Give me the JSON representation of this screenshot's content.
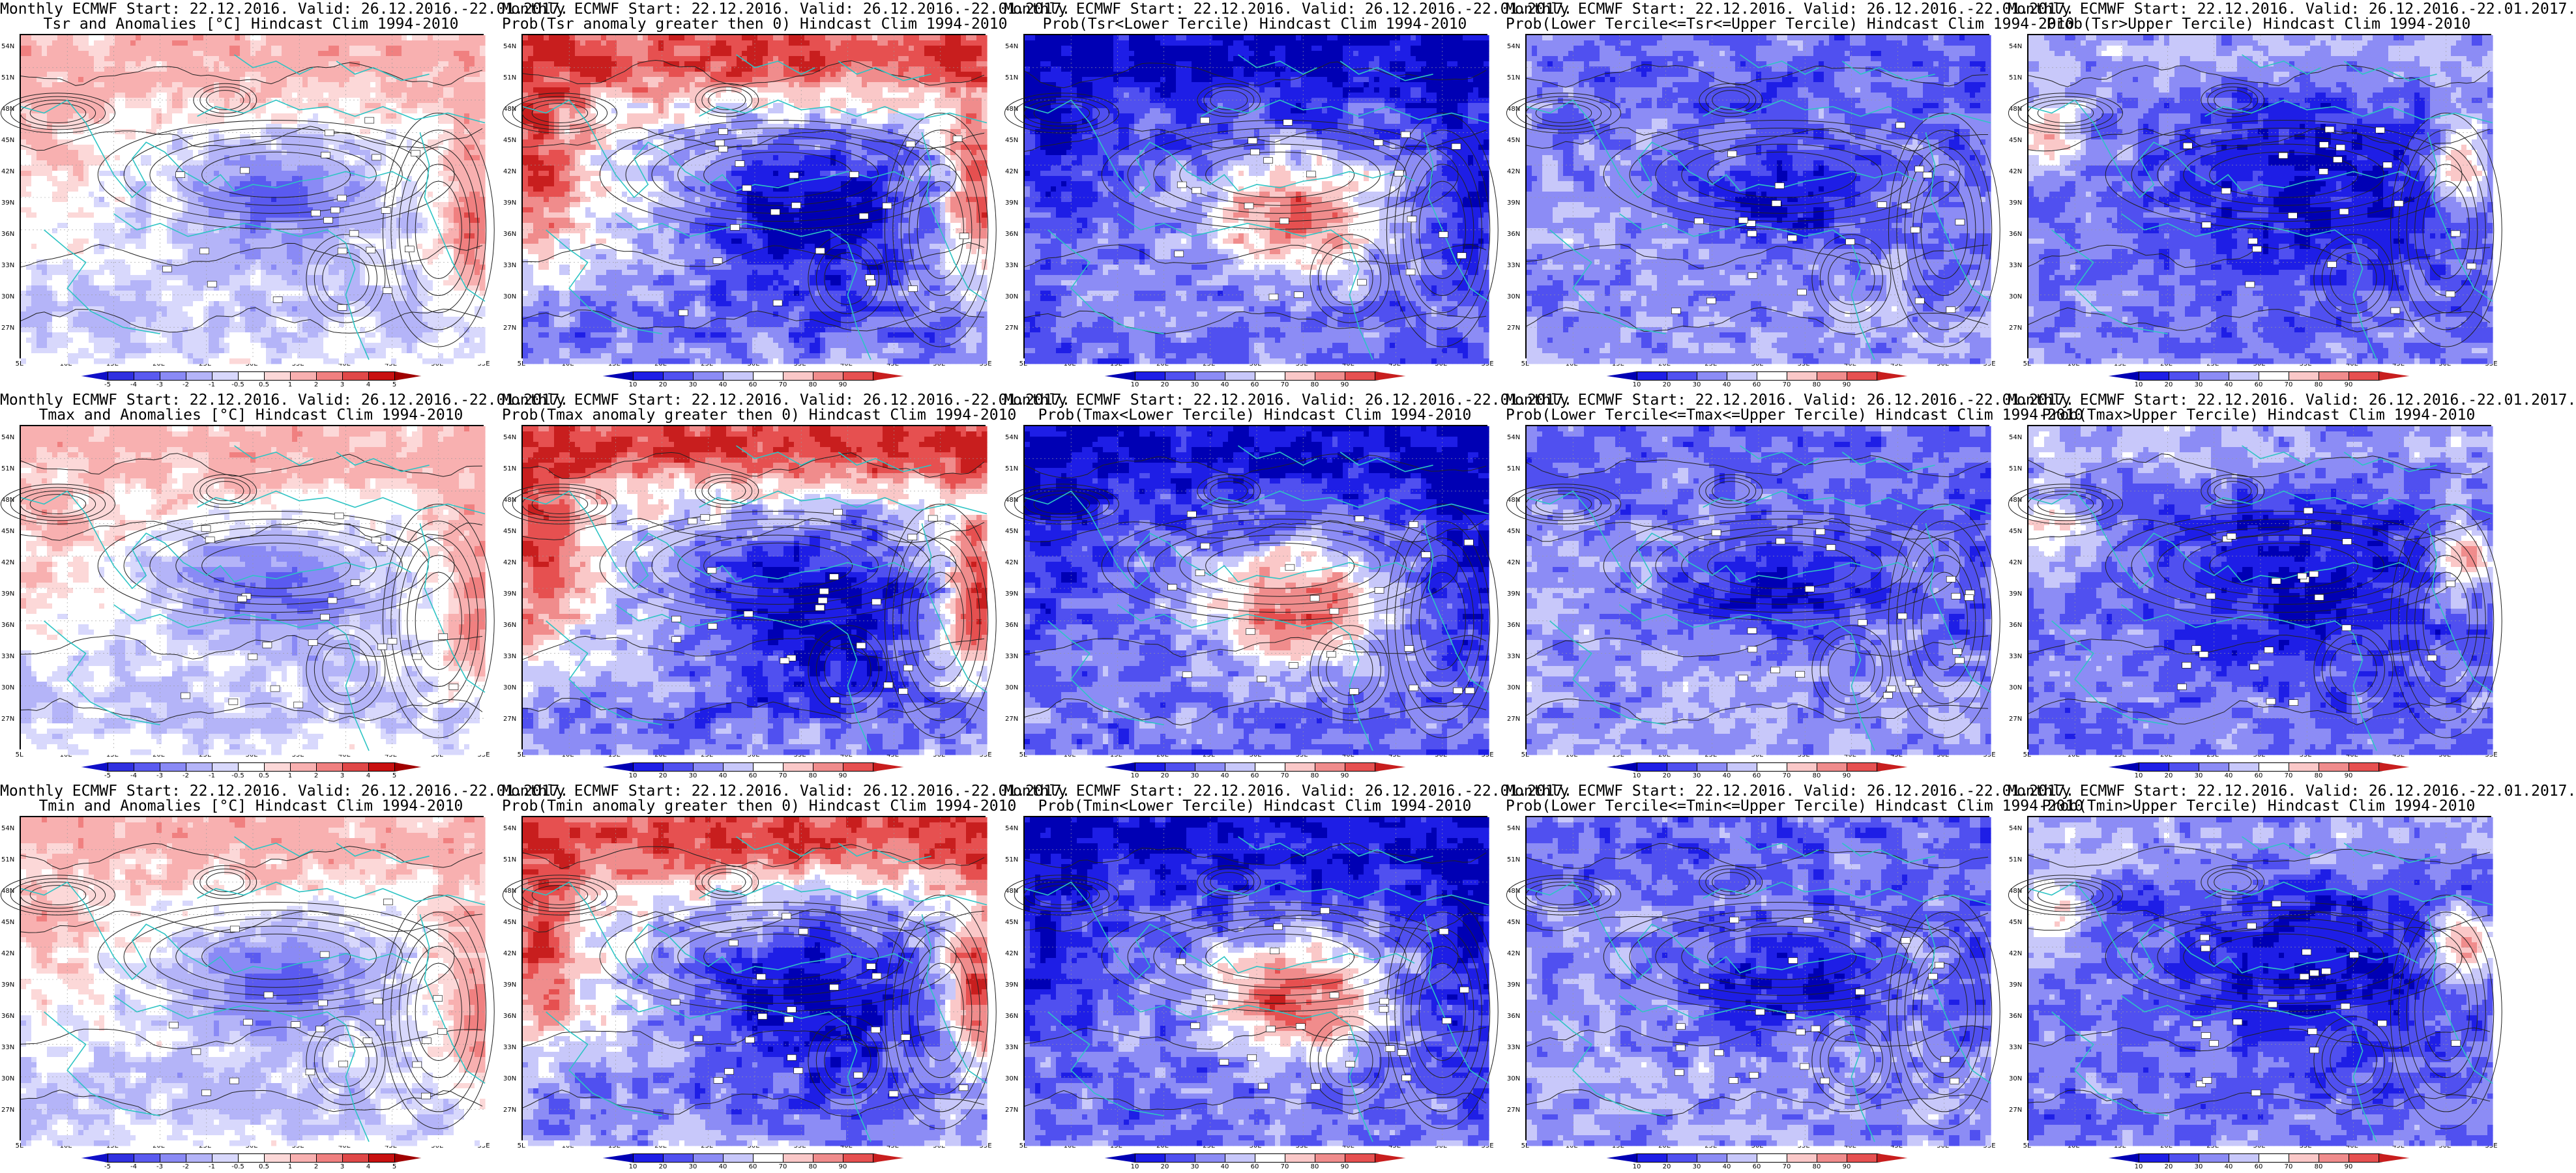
{
  "rows": [
    {
      "variable": "Tsr",
      "panels": [
        {
          "title1": "Monthly ECMWF Start: 22.12.2016. Valid: 26.12.2016.-22.01.2017.",
          "title2": "Tsr and Anomalies [°C] Hindcast Clim 1994-2010",
          "kind": "anom",
          "pattern": "anomT"
        },
        {
          "title1": "Monthly ECMWF Start: 22.12.2016. Valid: 26.12.2016.-22.01.2017.",
          "title2": "Prob(Tsr anomaly greater then 0) Hindcast Clim 1994-2010",
          "kind": "prob",
          "pattern": "probAnomTsr"
        },
        {
          "title1": "Monthly ECMWF Start: 22.12.2016. Valid: 26.12.2016.-22.01.2017.",
          "title2": "Prob(Tsr<Lower Tercile) Hindcast Clim 1994-2010",
          "kind": "prob",
          "pattern": "probLower"
        },
        {
          "title1": "Monthly ECMWF Start: 22.12.2016. Valid: 26.12.2016.-22.01.2017.",
          "title2": "Prob(Lower Tercile<=Tsr<=Upper Tercile) Hindcast Clim 1994-2010",
          "kind": "prob",
          "pattern": "probMiddle"
        },
        {
          "title1": "Monthly ECMWF Start: 22.12.2016. Valid: 26.12.2016.-22.01.2017.",
          "title2": "Prob(Tsr>Upper Tercile) Hindcast Clim 1994-2010",
          "kind": "prob",
          "pattern": "probUpper"
        }
      ]
    },
    {
      "variable": "Tmax",
      "panels": [
        {
          "title1": "Monthly ECMWF Start: 22.12.2016. Valid: 26.12.2016.-22.01.2017.",
          "title2": "Tmax and Anomalies [°C] Hindcast Clim 1994-2010",
          "kind": "anom",
          "pattern": "anomT"
        },
        {
          "title1": "Monthly ECMWF Start: 22.12.2016. Valid: 26.12.2016.-22.01.2017.",
          "title2": "Prob(Tmax anomaly greater then 0) Hindcast Clim 1994-2010",
          "kind": "prob",
          "pattern": "probAnomTsr"
        },
        {
          "title1": "Monthly ECMWF Start: 22.12.2016. Valid: 26.12.2016.-22.01.2017.",
          "title2": "Prob(Tmax<Lower Tercile) Hindcast Clim 1994-2010",
          "kind": "prob",
          "pattern": "probLower"
        },
        {
          "title1": "Monthly ECMWF Start: 22.12.2016. Valid: 26.12.2016.-22.01.2017.",
          "title2": "Prob(Lower Tercile<=Tmax<=Upper Tercile) Hindcast Clim 1994-2010",
          "kind": "prob",
          "pattern": "probMiddle"
        },
        {
          "title1": "Monthly ECMWF Start: 22.12.2016. Valid: 26.12.2016.-22.01.2017.",
          "title2": "Prob(Tmax>Upper Tercile) Hindcast Clim 1994-2010",
          "kind": "prob",
          "pattern": "probUpper"
        }
      ]
    },
    {
      "variable": "Tmin",
      "panels": [
        {
          "title1": "Monthly ECMWF Start: 22.12.2016. Valid: 26.12.2016.-22.01.2017.",
          "title2": "Tmin and Anomalies [°C] Hindcast Clim 1994-2010",
          "kind": "anom",
          "pattern": "anomT"
        },
        {
          "title1": "Monthly ECMWF Start: 22.12.2016. Valid: 26.12.2016.-22.01.2017.",
          "title2": "Prob(Tmin anomaly greater then 0) Hindcast Clim 1994-2010",
          "kind": "prob",
          "pattern": "probAnomTsr"
        },
        {
          "title1": "Monthly ECMWF Start: 22.12.2016. Valid: 26.12.2016.-22.01.2017.",
          "title2": "Prob(Tmin<Lower Tercile) Hindcast Clim 1994-2010",
          "kind": "prob",
          "pattern": "probLower"
        },
        {
          "title1": "Monthly ECMWF Start: 22.12.2016. Valid: 26.12.2016.-22.01.2017.",
          "title2": "Prob(Lower Tercile<=Tmin<=Upper Tercile) Hindcast Clim 1994-2010",
          "kind": "prob",
          "pattern": "probMiddle"
        },
        {
          "title1": "Monthly ECMWF Start: 22.12.2016. Valid: 26.12.2016.-22.01.2017.",
          "title2": "Prob(Tmin>Upper Tercile) Hindcast Clim 1994-2010",
          "kind": "prob",
          "pattern": "probUpper"
        }
      ]
    }
  ],
  "lat_labels": [
    "54N",
    "51N",
    "48N",
    "45N",
    "42N",
    "39N",
    "36N",
    "33N",
    "30N",
    "27N"
  ],
  "lon_labels": [
    "5E",
    "10E",
    "15E",
    "20E",
    "25E",
    "30E",
    "35E",
    "40E",
    "45E",
    "50E",
    "55E"
  ],
  "anom_legend": {
    "labels": [
      "-5",
      "-4",
      "-3",
      "-2",
      "-1",
      "-0.5",
      "0.5",
      "1",
      "2",
      "3",
      "4",
      "5"
    ],
    "colors": [
      "#1010c8",
      "#3030e0",
      "#5a5af0",
      "#8a8af5",
      "#b4b4f8",
      "#d8d8fc",
      "#ffffff",
      "#fcd8d8",
      "#f8b0b0",
      "#f08080",
      "#e04848",
      "#c81010",
      "#a00000"
    ]
  },
  "prob_legend": {
    "labels": [
      "10",
      "20",
      "30",
      "40",
      "60",
      "70",
      "80",
      "90"
    ],
    "colors": [
      "#0000b4",
      "#1e1ee6",
      "#5050f0",
      "#8c8cf5",
      "#c8c8fa",
      "#ffffff",
      "#fac8c8",
      "#f08c8c",
      "#e65050",
      "#c81e1e"
    ]
  },
  "colors": {
    "contour_coast": "#2ec4c4",
    "contour_black": "#222222",
    "frame": "#000000"
  }
}
